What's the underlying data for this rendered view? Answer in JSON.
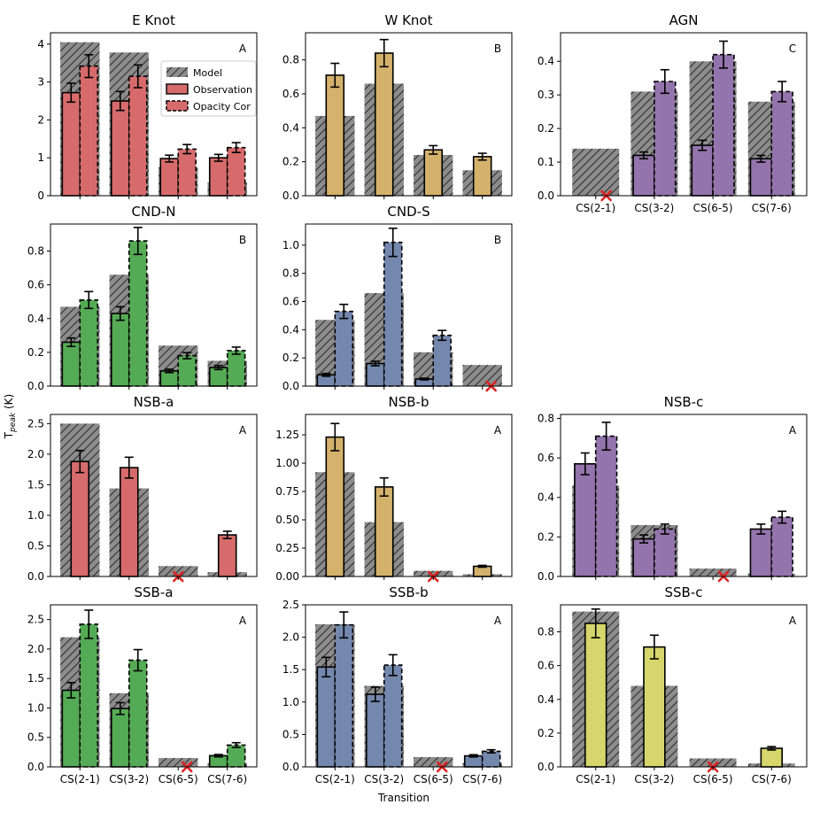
{
  "figure": {
    "ylabel": "T_peak (K)",
    "xlabel": "Transition",
    "legend": [
      "Model",
      "Observation",
      "Opacity Cor"
    ],
    "transitions": [
      "CS(2-1)",
      "CS(3-2)",
      "CS(6-5)",
      "CS(7-6)"
    ]
  },
  "colors": {
    "red": "#d76b6b",
    "tan": "#d4b26c",
    "purple": "#9474ac",
    "green": "#55aa55",
    "blue": "#7487ad",
    "yellow": "#d6d66c",
    "model": "#8c8c8c",
    "marker": "#e02020"
  },
  "chart_data": [
    {
      "type": "bar",
      "title": "E Knot",
      "letter": "A",
      "color": "red",
      "ylim": [
        0,
        4.3
      ],
      "yticks": [
        0,
        1,
        2,
        3,
        4
      ],
      "yfmt": 0,
      "show_xlabels": false,
      "legend": "top-right",
      "model": [
        4.05,
        3.78,
        0.75,
        0.35
      ],
      "obs": [
        2.72,
        2.5,
        0.98,
        1.0
      ],
      "obs_err": [
        0.25,
        0.25,
        0.09,
        0.09
      ],
      "cor": [
        3.42,
        3.15,
        1.23,
        1.27
      ],
      "cor_err": [
        0.3,
        0.3,
        0.12,
        0.13
      ]
    },
    {
      "type": "bar",
      "title": "W Knot",
      "letter": "B",
      "color": "tan",
      "ylim": [
        0,
        0.96
      ],
      "yticks": [
        0,
        0.2,
        0.4,
        0.6,
        0.8
      ],
      "yfmt": 1,
      "show_xlabels": false,
      "model": [
        0.47,
        0.66,
        0.24,
        0.15
      ],
      "obs": [
        0.71,
        0.84,
        0.27,
        0.23
      ],
      "obs_err": [
        0.07,
        0.08,
        0.025,
        0.02
      ],
      "cor": null,
      "cor_err": null
    },
    {
      "type": "bar",
      "title": "AGN",
      "letter": "C",
      "color": "purple",
      "ylim": [
        0,
        0.485
      ],
      "yticks": [
        0,
        0.1,
        0.2,
        0.3,
        0.4
      ],
      "yfmt": 1,
      "show_xlabels": true,
      "model": [
        0.14,
        0.31,
        0.4,
        0.28
      ],
      "obs": [
        null,
        0.12,
        0.15,
        0.11
      ],
      "obs_err": [
        null,
        0.01,
        0.015,
        0.01
      ],
      "cor": [
        null,
        0.34,
        0.42,
        0.31
      ],
      "cor_err": [
        null,
        0.035,
        0.04,
        0.03
      ],
      "nondetect": [
        0
      ]
    },
    {
      "type": "bar",
      "title": "CND-N",
      "letter": "B",
      "color": "green",
      "ylim": [
        0,
        0.96
      ],
      "yticks": [
        0,
        0.2,
        0.4,
        0.6,
        0.8
      ],
      "yfmt": 1,
      "show_xlabels": false,
      "model": [
        0.47,
        0.66,
        0.24,
        0.15
      ],
      "obs": [
        0.26,
        0.43,
        0.09,
        0.11
      ],
      "obs_err": [
        0.025,
        0.04,
        0.01,
        0.012
      ],
      "cor": [
        0.51,
        0.86,
        0.18,
        0.21
      ],
      "cor_err": [
        0.05,
        0.08,
        0.018,
        0.021
      ]
    },
    {
      "type": "bar",
      "title": "CND-S",
      "letter": "B",
      "color": "blue",
      "ylim": [
        0,
        1.15
      ],
      "yticks": [
        0,
        0.2,
        0.4,
        0.6,
        0.8,
        1.0
      ],
      "yfmt": 1,
      "show_xlabels": false,
      "model": [
        0.47,
        0.66,
        0.24,
        0.15
      ],
      "obs": [
        0.08,
        0.16,
        0.05,
        null
      ],
      "obs_err": [
        0.01,
        0.016,
        0.006,
        null
      ],
      "cor": [
        0.53,
        1.02,
        0.36,
        null
      ],
      "cor_err": [
        0.05,
        0.1,
        0.035,
        null
      ],
      "nondetect": [
        3
      ]
    },
    {
      "type": "bar",
      "title": "NSB-a",
      "letter": "A",
      "color": "red",
      "ylim": [
        0,
        2.65
      ],
      "yticks": [
        0,
        0.5,
        1.0,
        1.5,
        2.0,
        2.5
      ],
      "yfmt": 1,
      "show_xlabels": false,
      "model": [
        2.5,
        1.44,
        0.17,
        0.07
      ],
      "obs": [
        1.88,
        1.78,
        null,
        0.68
      ],
      "obs_err": [
        0.18,
        0.17,
        null,
        0.06
      ],
      "cor": null,
      "cor_err": null,
      "nondetect": [
        2
      ]
    },
    {
      "type": "bar",
      "title": "NSB-b",
      "letter": "A",
      "color": "tan",
      "ylim": [
        0,
        1.43
      ],
      "yticks": [
        0,
        0.25,
        0.5,
        0.75,
        1.0,
        1.25
      ],
      "yfmt": 2,
      "show_xlabels": false,
      "model": [
        0.92,
        0.48,
        0.05,
        0.02
      ],
      "obs": [
        1.23,
        0.79,
        null,
        0.09
      ],
      "obs_err": [
        0.12,
        0.08,
        null,
        0.008
      ],
      "cor": null,
      "cor_err": null,
      "nondetect": [
        2
      ]
    },
    {
      "type": "bar",
      "title": "NSB-c",
      "letter": "A",
      "color": "purple",
      "ylim": [
        0,
        0.82
      ],
      "yticks": [
        0,
        0.2,
        0.4,
        0.6,
        0.8
      ],
      "yfmt": 1,
      "show_xlabels": false,
      "model": [
        0.46,
        0.26,
        0.04,
        0.015
      ],
      "obs": [
        0.57,
        0.19,
        null,
        0.24
      ],
      "obs_err": [
        0.055,
        0.02,
        null,
        0.025
      ],
      "cor": [
        0.71,
        0.24,
        null,
        0.3
      ],
      "cor_err": [
        0.07,
        0.025,
        null,
        0.03
      ],
      "nondetect": [
        2
      ]
    },
    {
      "type": "bar",
      "title": "SSB-a",
      "letter": "A",
      "color": "green",
      "ylim": [
        0,
        2.75
      ],
      "yticks": [
        0,
        0.5,
        1.0,
        1.5,
        2.0,
        2.5
      ],
      "yfmt": 1,
      "show_xlabels": true,
      "model": [
        2.2,
        1.25,
        0.15,
        0.06
      ],
      "obs": [
        1.3,
        0.99,
        null,
        0.19
      ],
      "obs_err": [
        0.13,
        0.1,
        null,
        0.02
      ],
      "cor": [
        2.42,
        1.81,
        null,
        0.37
      ],
      "cor_err": [
        0.24,
        0.18,
        null,
        0.04
      ],
      "nondetect": [
        2
      ]
    },
    {
      "type": "bar",
      "title": "SSB-b",
      "letter": "A",
      "color": "blue",
      "ylim": [
        0,
        2.5
      ],
      "yticks": [
        0,
        0.5,
        1.0,
        1.5,
        2.0,
        2.5
      ],
      "yfmt": 1,
      "show_xlabels": true,
      "model": [
        2.2,
        1.25,
        0.15,
        0.06
      ],
      "obs": [
        1.54,
        1.12,
        null,
        0.17
      ],
      "obs_err": [
        0.15,
        0.11,
        null,
        0.017
      ],
      "cor": [
        2.19,
        1.57,
        null,
        0.24
      ],
      "cor_err": [
        0.2,
        0.16,
        null,
        0.024
      ],
      "nondetect": [
        2
      ]
    },
    {
      "type": "bar",
      "title": "SSB-c",
      "letter": "A",
      "color": "yellow",
      "ylim": [
        0,
        0.96
      ],
      "yticks": [
        0,
        0.2,
        0.4,
        0.6,
        0.8
      ],
      "yfmt": 1,
      "show_xlabels": true,
      "model": [
        0.92,
        0.48,
        0.05,
        0.02
      ],
      "obs": [
        0.85,
        0.71,
        null,
        0.11
      ],
      "obs_err": [
        0.085,
        0.07,
        null,
        0.01
      ],
      "cor": null,
      "cor_err": null,
      "nondetect": [
        2
      ]
    }
  ]
}
